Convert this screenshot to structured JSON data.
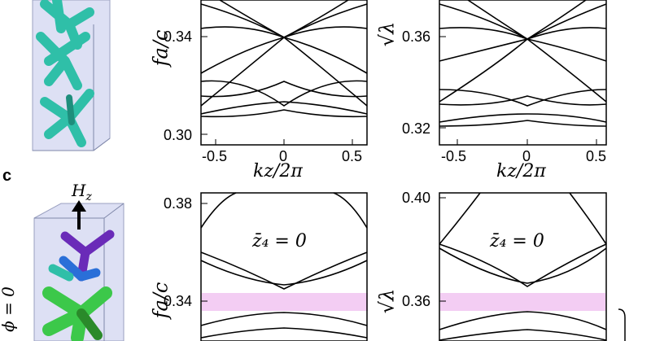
{
  "figure": {
    "panel_label_c": "c",
    "field_label": "H",
    "field_sub": "z",
    "phi_label": "ϕ = 0",
    "crystal_colors": {
      "top_struct": "#2fbfa8",
      "bottom_struct": "#3cc84a",
      "purple": "#6a2bb8",
      "cell_fill": "#dde0f4"
    }
  },
  "panels": [
    {
      "id": "top-left",
      "ylabel": "fa/c",
      "yticks": [
        "0.34",
        "0.30"
      ],
      "xticks": [
        "-0.5",
        "0",
        "0.5"
      ],
      "xlabel": "kz/2π"
    },
    {
      "id": "top-right",
      "ylabel": "√λ",
      "yticks": [
        "0.36",
        "0.32"
      ],
      "xticks": [
        "-0.5",
        "0",
        "0.5"
      ],
      "xlabel": "kz/2π"
    },
    {
      "id": "bottom-left",
      "ylabel": "fa/c",
      "yticks": [
        "0.38",
        "0.34"
      ],
      "annotation": "z̄₄ = 0",
      "gap_color": "#f3cdf3"
    },
    {
      "id": "bottom-right",
      "ylabel": "√λ",
      "yticks": [
        "0.40",
        "0.36"
      ],
      "annotation": "z̄₄ = 0",
      "gap_color": "#f3cdf3"
    }
  ]
}
